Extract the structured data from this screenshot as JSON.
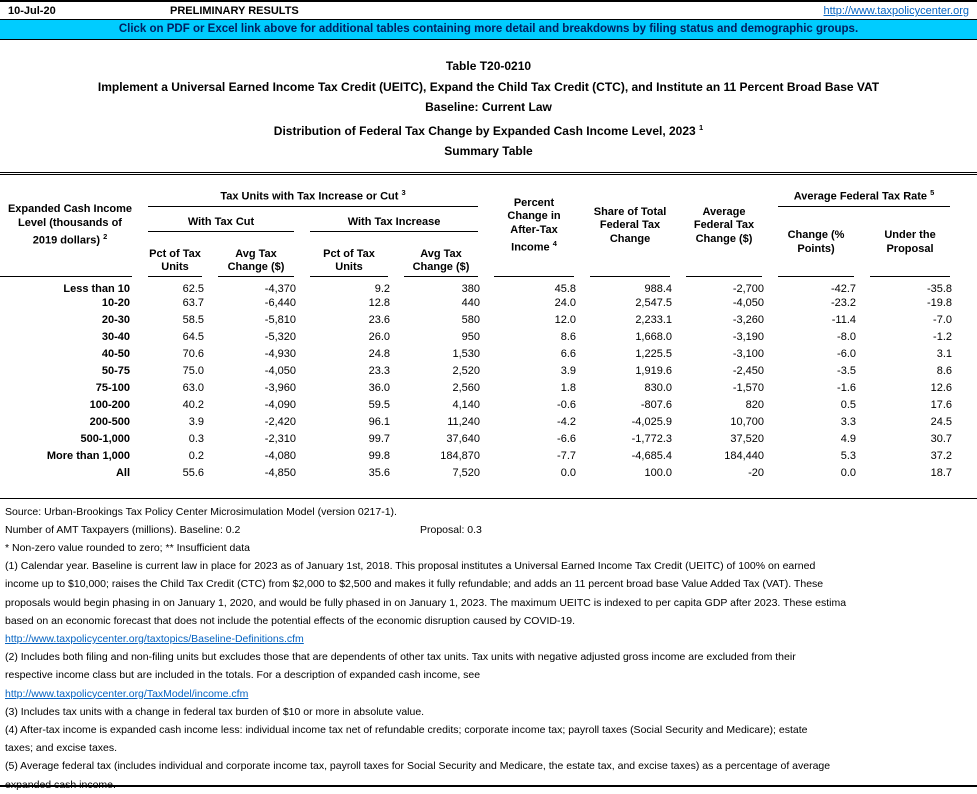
{
  "topbar": {
    "date": "10-Jul-20",
    "status": "PRELIMINARY RESULTS",
    "link": "http://www.taxpolicycenter.org"
  },
  "banner": {
    "text": "Click on PDF or Excel link above for additional tables containing more detail and breakdowns by filing status and demographic groups."
  },
  "title": {
    "line1": "Table T20-0210",
    "line2": "Implement a Universal Earned Income Tax Credit (UEITC), Expand the Child Tax Credit (CTC), and Institute an 11 Percent Broad Base VAT",
    "line3": "Baseline: Current Law",
    "line4": "Distribution of Federal Tax Change by Expanded Cash Income Level, 2023",
    "line4_sup": "1",
    "line5": "Summary Table"
  },
  "table": {
    "headers": {
      "income_level": "Expanded Cash Income\nLevel (thousands of\n2019 dollars)",
      "income_level_sup": "2",
      "tax_units_group": "Tax Units with Tax Increase or Cut",
      "tax_units_group_sup": "3",
      "with_tax_cut": "With Tax Cut",
      "with_tax_increase": "With Tax Increase",
      "pct_of_tax_units": "Pct of Tax\nUnits",
      "avg_tax_change": "Avg Tax\nChange ($)",
      "pct_change_ati": "Percent\nChange in\nAfter-Tax\nIncome",
      "pct_change_ati_sup": "4",
      "share_total": "Share of Total\nFederal Tax\nChange",
      "avg_fed_tax_change": "Average\nFederal Tax\nChange ($)",
      "avg_fed_tax_rate_group": "Average Federal Tax Rate",
      "avg_fed_tax_rate_group_sup": "5",
      "rate_change": "Change (%\nPoints)",
      "rate_under_proposal": "Under the\nProposal"
    },
    "rows": [
      {
        "label": "Less than 10",
        "values": [
          "62.5",
          "-4,370",
          "9.2",
          "380",
          "45.8",
          "988.4",
          "-2,700",
          "-42.7",
          "-35.8"
        ]
      },
      {
        "label": "10-20",
        "values": [
          "63.7",
          "-6,440",
          "12.8",
          "440",
          "24.0",
          "2,547.5",
          "-4,050",
          "-23.2",
          "-19.8"
        ]
      },
      {
        "label": "20-30",
        "values": [
          "58.5",
          "-5,810",
          "23.6",
          "580",
          "12.0",
          "2,233.1",
          "-3,260",
          "-11.4",
          "-7.0"
        ]
      },
      {
        "label": "30-40",
        "values": [
          "64.5",
          "-5,320",
          "26.0",
          "950",
          "8.6",
          "1,668.0",
          "-3,190",
          "-8.0",
          "-1.2"
        ]
      },
      {
        "label": "40-50",
        "values": [
          "70.6",
          "-4,930",
          "24.8",
          "1,530",
          "6.6",
          "1,225.5",
          "-3,100",
          "-6.0",
          "3.1"
        ]
      },
      {
        "label": "50-75",
        "values": [
          "75.0",
          "-4,050",
          "23.3",
          "2,520",
          "3.9",
          "1,919.6",
          "-2,450",
          "-3.5",
          "8.6"
        ]
      },
      {
        "label": "75-100",
        "values": [
          "63.0",
          "-3,960",
          "36.0",
          "2,560",
          "1.8",
          "830.0",
          "-1,570",
          "-1.6",
          "12.6"
        ]
      },
      {
        "label": "100-200",
        "values": [
          "40.2",
          "-4,090",
          "59.5",
          "4,140",
          "-0.6",
          "-807.6",
          "820",
          "0.5",
          "17.6"
        ]
      },
      {
        "label": "200-500",
        "values": [
          "3.9",
          "-2,420",
          "96.1",
          "11,240",
          "-4.2",
          "-4,025.9",
          "10,700",
          "3.3",
          "24.5"
        ]
      },
      {
        "label": "500-1,000",
        "values": [
          "0.3",
          "-2,310",
          "99.7",
          "37,640",
          "-6.6",
          "-1,772.3",
          "37,520",
          "4.9",
          "30.7"
        ]
      },
      {
        "label": "More than 1,000",
        "values": [
          "0.2",
          "-4,080",
          "99.8",
          "184,870",
          "-7.7",
          "-4,685.4",
          "184,440",
          "5.3",
          "37.2"
        ]
      },
      {
        "label": "All",
        "values": [
          "55.6",
          "-4,850",
          "35.6",
          "7,520",
          "0.0",
          "100.0",
          "-20",
          "0.0",
          "18.7"
        ]
      }
    ]
  },
  "footer": {
    "lines": [
      {
        "type": "text",
        "text": "Source: Urban-Brookings Tax Policy Center Microsimulation Model (version 0217-1)."
      },
      {
        "type": "amt",
        "left": "Number of AMT Taxpayers (millions).  Baseline: 0.2",
        "right": "Proposal: 0.3"
      },
      {
        "type": "text",
        "text": "* Non-zero value rounded to zero; ** Insufficient data"
      },
      {
        "type": "text",
        "text": "(1) Calendar year. Baseline is current law in place for 2023 as of January 1st, 2018. This proposal institutes a Universal Earned Income Tax Credit (UEITC) of 100% on earned"
      },
      {
        "type": "text",
        "text": "income up to $10,000; raises the Child Tax Credit (CTC) from $2,000 to $2,500 and makes it fully refundable; and adds an 11 percent broad base Value Added Tax (VAT). These"
      },
      {
        "type": "text",
        "text": "proposals would begin phasing in on January 1, 2020, and would be fully phased in on January 1, 2023. The maximum UEITC is indexed to per capita GDP after 2023. These estima"
      },
      {
        "type": "text",
        "text": "based on an economic forecast that does not include the potential effects of the economic disruption caused by COVID-19."
      },
      {
        "type": "link",
        "text": "http://www.taxpolicycenter.org/taxtopics/Baseline-Definitions.cfm"
      },
      {
        "type": "text",
        "text": "(2) Includes both filing and non-filing units but excludes those that are dependents of other tax units. Tax units with negative adjusted gross income are excluded from their"
      },
      {
        "type": "text",
        "text": "respective income class but are included in the totals. For a description of expanded cash income, see"
      },
      {
        "type": "link",
        "text": "http://www.taxpolicycenter.org/TaxModel/income.cfm"
      },
      {
        "type": "text",
        "text": "(3) Includes tax units with a change in federal tax burden of $10 or more in absolute value."
      },
      {
        "type": "text",
        "text": "(4) After-tax income is expanded cash income less: individual income tax net of refundable credits; corporate income tax; payroll taxes (Social Security and Medicare); estate"
      },
      {
        "type": "text",
        "text": "taxes; and excise taxes."
      },
      {
        "type": "text",
        "text": "(5) Average federal tax (includes individual and corporate income tax, payroll taxes for Social Security and Medicare, the estate tax, and excise taxes) as a percentage of average"
      },
      {
        "type": "text",
        "text": "expanded cash income."
      }
    ]
  },
  "colors": {
    "banner_bg": "#00CCFF",
    "banner_text": "#002060",
    "link_blue": "#0563C1"
  }
}
